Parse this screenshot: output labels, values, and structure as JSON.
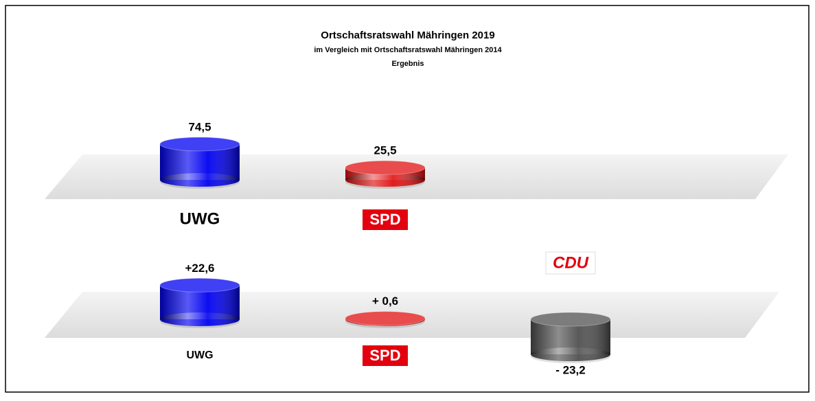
{
  "chart_data": [
    {
      "type": "bar",
      "title": "Ortschaftsratswahl Mähringen 2019",
      "subtitle": "im Vergleich mit Ortschaftsratswahl Mähringen 2014",
      "annotation": "Ergebnis",
      "categories": [
        "UWG",
        "SPD"
      ],
      "values": [
        74.5,
        25.5
      ],
      "value_labels": [
        "74,5",
        "25,5"
      ],
      "colors": [
        "#0000f0",
        "#e01010"
      ]
    },
    {
      "type": "bar",
      "categories": [
        "UWG",
        "SPD",
        "CDU"
      ],
      "values": [
        22.6,
        0.6,
        -23.2
      ],
      "value_labels": [
        "+22,6",
        "+ 0,6",
        "- 23,2"
      ],
      "colors": [
        "#0000f0",
        "#e01010",
        "#505050"
      ]
    }
  ]
}
